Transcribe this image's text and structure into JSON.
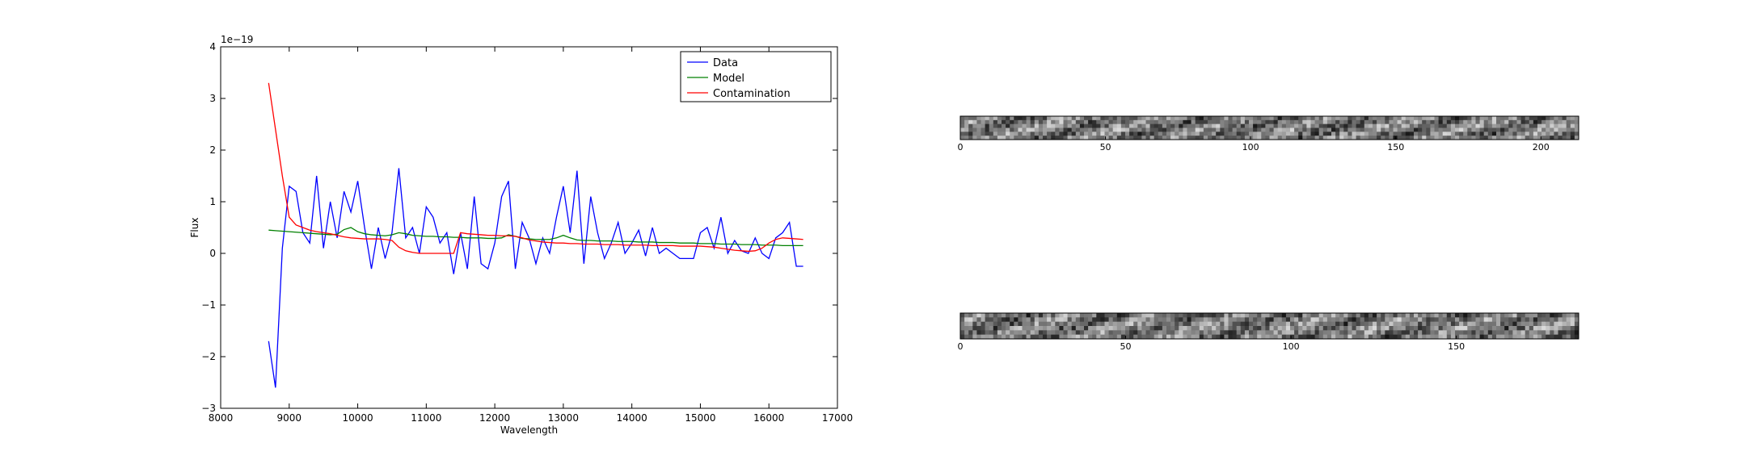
{
  "chart_data": [
    {
      "type": "line",
      "xlabel": "Wavelength",
      "ylabel": "Flux",
      "y_offset_label": "1e−19",
      "xlim": [
        8000,
        17000
      ],
      "xticks": [
        8000,
        9000,
        10000,
        11000,
        12000,
        13000,
        14000,
        15000,
        16000,
        17000
      ],
      "ylim": [
        -3,
        4
      ],
      "yticks": [
        {
          "value": -3,
          "label": "−3"
        },
        {
          "value": -2,
          "label": "−2"
        },
        {
          "value": -1,
          "label": "−1"
        },
        0,
        1,
        2,
        3,
        4
      ],
      "legend": "upper right",
      "x": [
        8700,
        8800,
        8900,
        9000,
        9100,
        9200,
        9300,
        9400,
        9500,
        9600,
        9700,
        9800,
        9900,
        10000,
        10100,
        10200,
        10300,
        10400,
        10500,
        10600,
        10700,
        10800,
        10900,
        11000,
        11100,
        11200,
        11300,
        11400,
        11500,
        11600,
        11700,
        11800,
        11900,
        12000,
        12100,
        12200,
        12300,
        12400,
        12500,
        12600,
        12700,
        12800,
        12900,
        13000,
        13100,
        13200,
        13300,
        13400,
        13500,
        13600,
        13700,
        13800,
        13900,
        14000,
        14100,
        14200,
        14300,
        14400,
        14500,
        14600,
        14700,
        14800,
        14900,
        15000,
        15100,
        15200,
        15300,
        15400,
        15500,
        15600,
        15700,
        15800,
        15900,
        16000,
        16100,
        16200,
        16300,
        16400,
        16500
      ],
      "series": [
        {
          "name": "Data",
          "color": "#0000ff",
          "values": [
            -1.7,
            -2.6,
            0.1,
            1.3,
            1.2,
            0.4,
            0.2,
            1.5,
            0.1,
            1.0,
            0.3,
            1.2,
            0.8,
            1.4,
            0.5,
            -0.3,
            0.5,
            -0.1,
            0.4,
            1.65,
            0.3,
            0.5,
            0.0,
            0.9,
            0.7,
            0.2,
            0.4,
            -0.4,
            0.4,
            -0.3,
            1.1,
            -0.2,
            -0.3,
            0.2,
            1.1,
            1.4,
            -0.3,
            0.6,
            0.3,
            -0.2,
            0.3,
            0.0,
            0.7,
            1.3,
            0.4,
            1.6,
            -0.2,
            1.1,
            0.4,
            -0.1,
            0.2,
            0.6,
            0.0,
            0.2,
            0.45,
            -0.05,
            0.5,
            0.0,
            0.1,
            0.0,
            -0.1,
            -0.1,
            -0.1,
            0.4,
            0.5,
            0.1,
            0.7,
            0.0,
            0.25,
            0.05,
            0.0,
            0.3,
            0.0,
            -0.1,
            0.3,
            0.4,
            0.6,
            -0.25,
            -0.25
          ]
        },
        {
          "name": "Model",
          "color": "#008000",
          "values": [
            0.45,
            0.44,
            0.43,
            0.42,
            0.41,
            0.4,
            0.39,
            0.38,
            0.37,
            0.36,
            0.37,
            0.46,
            0.5,
            0.42,
            0.38,
            0.36,
            0.35,
            0.34,
            0.36,
            0.4,
            0.38,
            0.35,
            0.34,
            0.33,
            0.33,
            0.32,
            0.32,
            0.31,
            0.31,
            0.3,
            0.3,
            0.3,
            0.29,
            0.29,
            0.3,
            0.36,
            0.33,
            0.29,
            0.28,
            0.27,
            0.27,
            0.27,
            0.3,
            0.35,
            0.3,
            0.26,
            0.25,
            0.25,
            0.24,
            0.24,
            0.24,
            0.23,
            0.23,
            0.23,
            0.22,
            0.22,
            0.22,
            0.21,
            0.21,
            0.21,
            0.2,
            0.2,
            0.2,
            0.19,
            0.19,
            0.19,
            0.18,
            0.18,
            0.18,
            0.17,
            0.17,
            0.17,
            0.16,
            0.16,
            0.16,
            0.15,
            0.15,
            0.15,
            0.15
          ]
        },
        {
          "name": "Contamination",
          "color": "#ff0000",
          "values": [
            3.3,
            2.4,
            1.5,
            0.7,
            0.55,
            0.5,
            0.45,
            0.42,
            0.4,
            0.38,
            0.35,
            0.32,
            0.3,
            0.29,
            0.28,
            0.28,
            0.28,
            0.27,
            0.25,
            0.12,
            0.05,
            0.02,
            0.0,
            0.0,
            0.0,
            0.0,
            0.0,
            0.0,
            0.4,
            0.38,
            0.37,
            0.36,
            0.35,
            0.35,
            0.34,
            0.34,
            0.33,
            0.3,
            0.26,
            0.24,
            0.22,
            0.21,
            0.2,
            0.2,
            0.19,
            0.19,
            0.18,
            0.18,
            0.18,
            0.17,
            0.17,
            0.17,
            0.16,
            0.16,
            0.16,
            0.16,
            0.15,
            0.15,
            0.15,
            0.15,
            0.14,
            0.14,
            0.14,
            0.14,
            0.13,
            0.12,
            0.1,
            0.08,
            0.06,
            0.05,
            0.04,
            0.05,
            0.1,
            0.2,
            0.27,
            0.3,
            0.29,
            0.28,
            0.27
          ]
        }
      ]
    },
    {
      "type": "image",
      "xlim": [
        0,
        213
      ],
      "xticks": [
        0,
        50,
        100,
        150,
        200
      ]
    },
    {
      "type": "image",
      "xlim": [
        0,
        187
      ],
      "xticks": [
        0,
        50,
        100,
        150
      ]
    }
  ]
}
